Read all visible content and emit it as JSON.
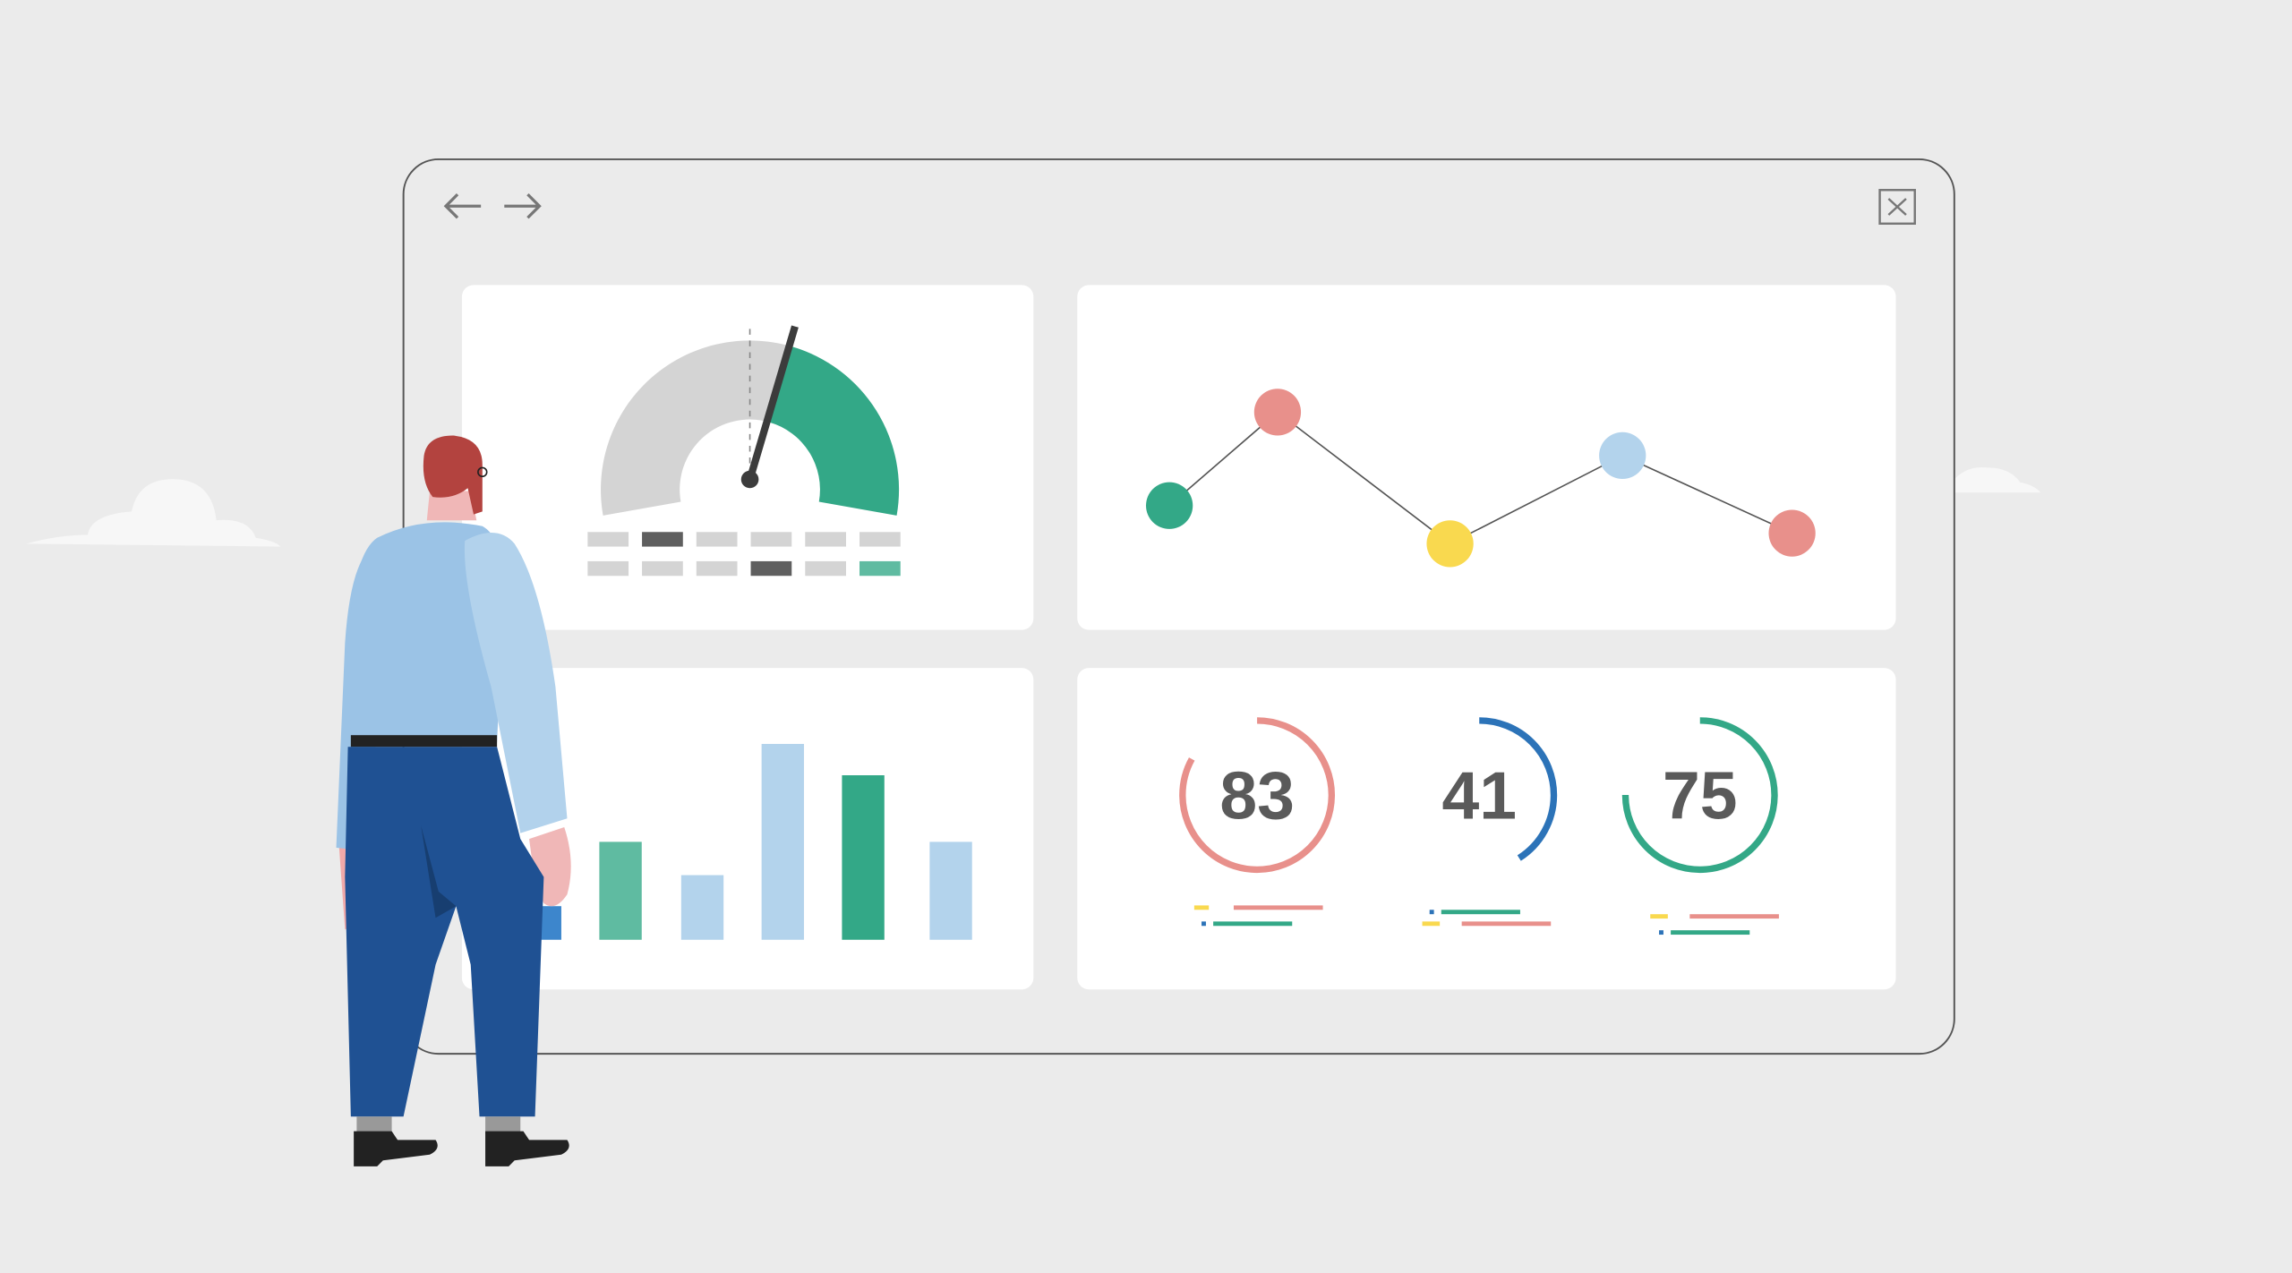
{
  "colors": {
    "background": "#ebebeb",
    "panel": "#ffffff",
    "green": "#33a887",
    "teal": "#5fbba1",
    "pink": "#e8908b",
    "yellow": "#f9d94f",
    "light_blue": "#b3d3ec",
    "blue": "#2c73b8",
    "gray": "#d4d4d4",
    "dark": "#5f5f5f"
  },
  "window": {
    "back_icon": "arrow-left-icon",
    "forward_icon": "arrow-right-icon",
    "close_icon": "close-x-icon"
  },
  "gauge": {
    "value": 0.58,
    "grid": [
      [
        "gray",
        "dark",
        "gray",
        "gray",
        "gray",
        "gray"
      ],
      [
        "gray",
        "gray",
        "gray",
        "dark",
        "gray",
        "teal"
      ]
    ]
  },
  "line_chart": {
    "points": [
      {
        "value": 0.29,
        "color": "#33a887"
      },
      {
        "value": 1.0,
        "color": "#e8908b"
      },
      {
        "value": 0.0,
        "color": "#f9d94f"
      },
      {
        "value": 0.67,
        "color": "#b3d3ec"
      },
      {
        "value": 0.08,
        "color": "#e8908b"
      }
    ]
  },
  "bar_chart": {
    "bars": [
      {
        "value": 50,
        "color": "#5fbba1"
      },
      {
        "value": 33,
        "color": "#b3d3ec"
      },
      {
        "value": 100,
        "color": "#b3d3ec"
      },
      {
        "value": 84,
        "color": "#33a887"
      },
      {
        "value": 50,
        "color": "#b3d3ec"
      }
    ]
  },
  "rings": [
    {
      "label": "83",
      "percent": 83,
      "color": "#e8908b"
    },
    {
      "label": "41",
      "percent": 41,
      "color": "#2c73b8"
    },
    {
      "label": "75",
      "percent": 75,
      "color": "#33a887"
    }
  ]
}
